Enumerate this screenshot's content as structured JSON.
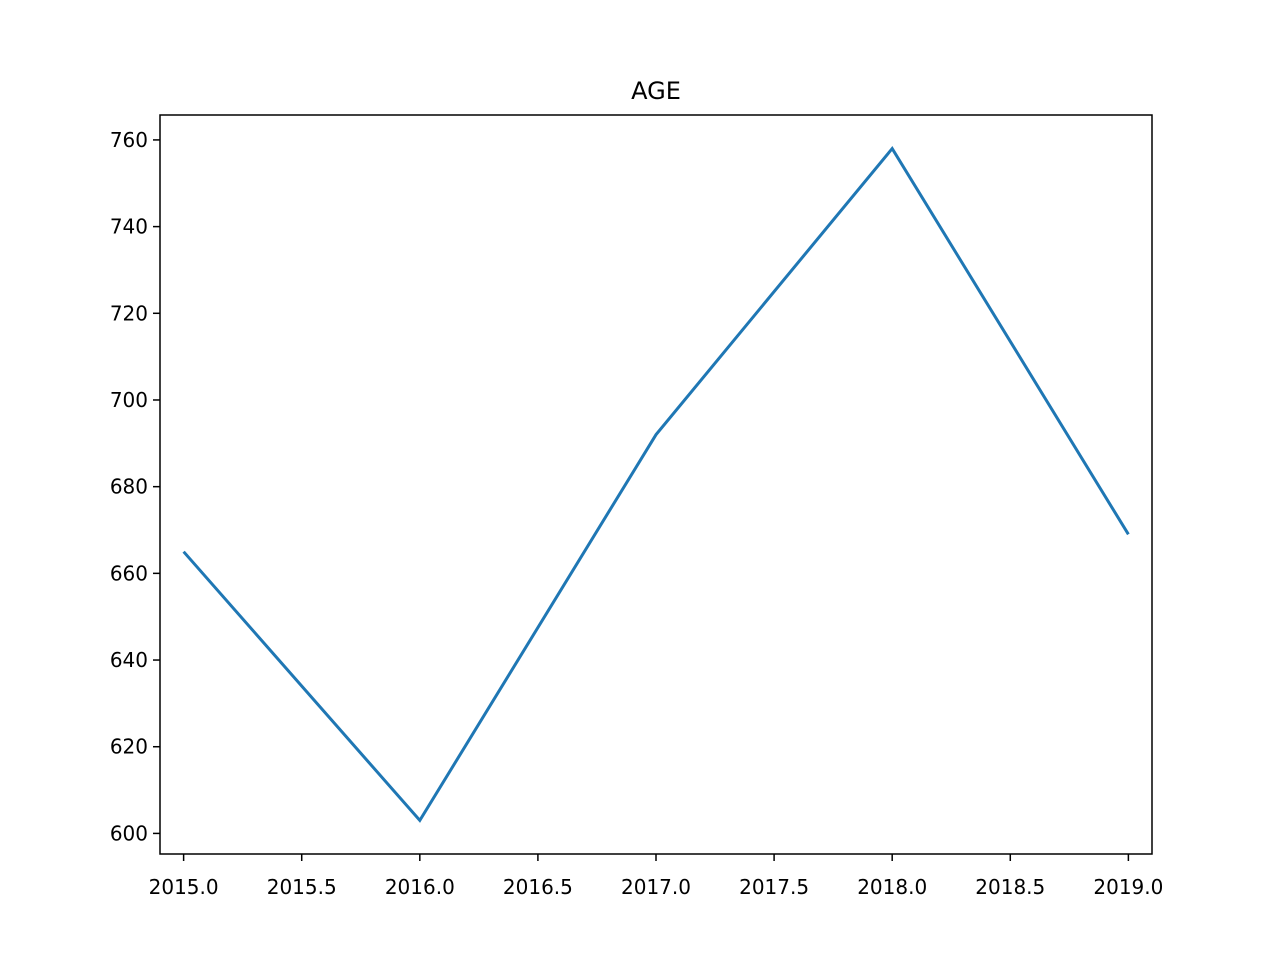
{
  "chart_data": {
    "type": "line",
    "title": "AGE",
    "xlabel": "",
    "ylabel": "",
    "x": [
      2015.0,
      2016.0,
      2017.0,
      2018.0,
      2019.0
    ],
    "series": [
      {
        "values": [
          665,
          603,
          692,
          758,
          669
        ],
        "color": "#1f77b4"
      }
    ],
    "xlim": [
      2014.9,
      2019.1
    ],
    "ylim": [
      595.25,
      765.75
    ],
    "xticks": [
      2015.0,
      2015.5,
      2016.0,
      2016.5,
      2017.0,
      2017.5,
      2018.0,
      2018.5,
      2019.0
    ],
    "xtick_labels": [
      "2015.0",
      "2015.5",
      "2016.0",
      "2016.5",
      "2017.0",
      "2017.5",
      "2018.0",
      "2018.5",
      "2019.0"
    ],
    "yticks": [
      600,
      620,
      640,
      660,
      680,
      700,
      720,
      740,
      760
    ],
    "ytick_labels": [
      "600",
      "620",
      "640",
      "660",
      "680",
      "700",
      "720",
      "740",
      "760"
    ],
    "grid": false,
    "legend": "none"
  }
}
